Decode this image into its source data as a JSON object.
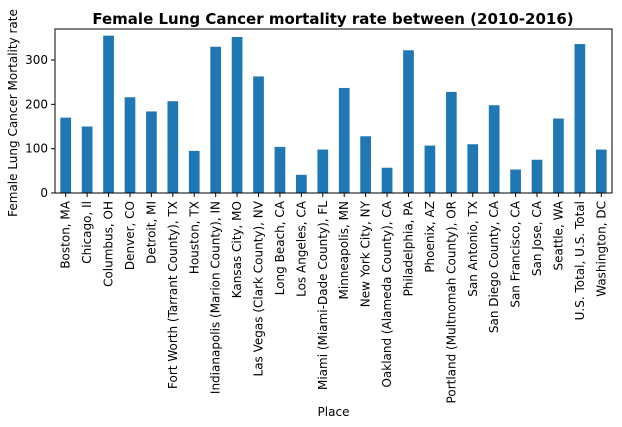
{
  "chart_data": {
    "type": "bar",
    "title": "Female Lung Cancer mortality rate between (2010-2016)",
    "xlabel": "Place",
    "ylabel": "Female Lung Cancer Mortality rate",
    "ylim": [
      0,
      370
    ],
    "yticks": [
      0,
      100,
      200,
      300
    ],
    "grid": false,
    "legend": "none",
    "bar_color": "#1f77b4",
    "categories": [
      "Boston, MA",
      "Chicago, Il",
      "Columbus, OH",
      "Denver, CO",
      "Detroit, MI",
      "Fort Worth (Tarrant County), TX",
      "Houston, TX",
      "Indianapolis (Marion County), IN",
      "Kansas City, MO",
      "Las Vegas (Clark County), NV",
      "Long Beach, CA",
      "Los Angeles, CA",
      "Miami (Miami-Dade County), FL",
      "Minneapolis, MN",
      "New York City, NY",
      "Oakland (Alameda County), CA",
      "Philadelphia, PA",
      "Phoenix, AZ",
      "Portland (Multnomah County), OR",
      "San Antonio, TX",
      "San Diego County, CA",
      "San Francisco, CA",
      "San Jose, CA",
      "Seattle, WA",
      "U.S. Total, U.S. Total",
      "Washington, DC"
    ],
    "values": [
      170,
      150,
      355,
      216,
      184,
      207,
      95,
      330,
      352,
      263,
      104,
      41,
      98,
      237,
      128,
      57,
      322,
      107,
      228,
      110,
      198,
      53,
      75,
      168,
      336,
      98
    ]
  }
}
